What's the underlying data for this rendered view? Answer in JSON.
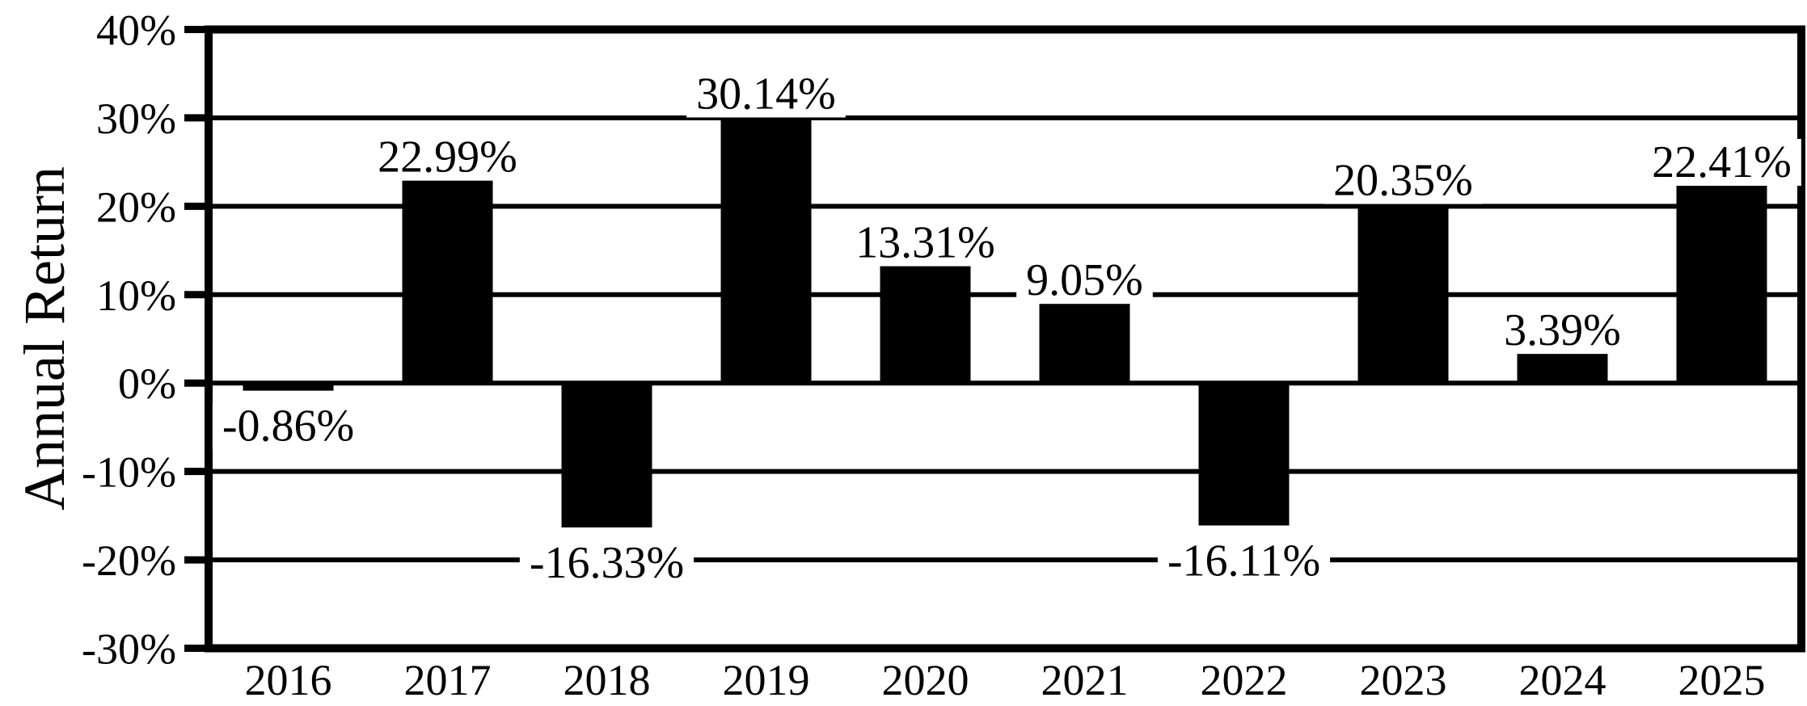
{
  "chart_data": {
    "type": "bar",
    "title": "",
    "xlabel": "",
    "ylabel": "Annual Return",
    "categories": [
      "2016",
      "2017",
      "2018",
      "2019",
      "2020",
      "2021",
      "2022",
      "2023",
      "2024",
      "2025"
    ],
    "values": [
      -0.86,
      22.99,
      -16.33,
      30.14,
      13.31,
      9.05,
      -16.11,
      20.35,
      3.39,
      22.41
    ],
    "value_labels": [
      "-0.86%",
      "22.99%",
      "-16.33%",
      "30.14%",
      "13.31%",
      "9.05%",
      "-16.11%",
      "20.35%",
      "3.39%",
      "22.41%"
    ],
    "ytick_labels": [
      "40%",
      "30%",
      "20%",
      "10%",
      "0%",
      "-10%",
      "-20%",
      "-30%"
    ],
    "ytick_values": [
      40,
      30,
      20,
      10,
      0,
      -10,
      -20,
      -30
    ],
    "ylim": [
      -30,
      40
    ],
    "ytick_step": 10,
    "grid": "horizontal",
    "legend": "none",
    "bar_color": "#000000",
    "axis_color": "#000000",
    "background_color": "#ffffff"
  }
}
